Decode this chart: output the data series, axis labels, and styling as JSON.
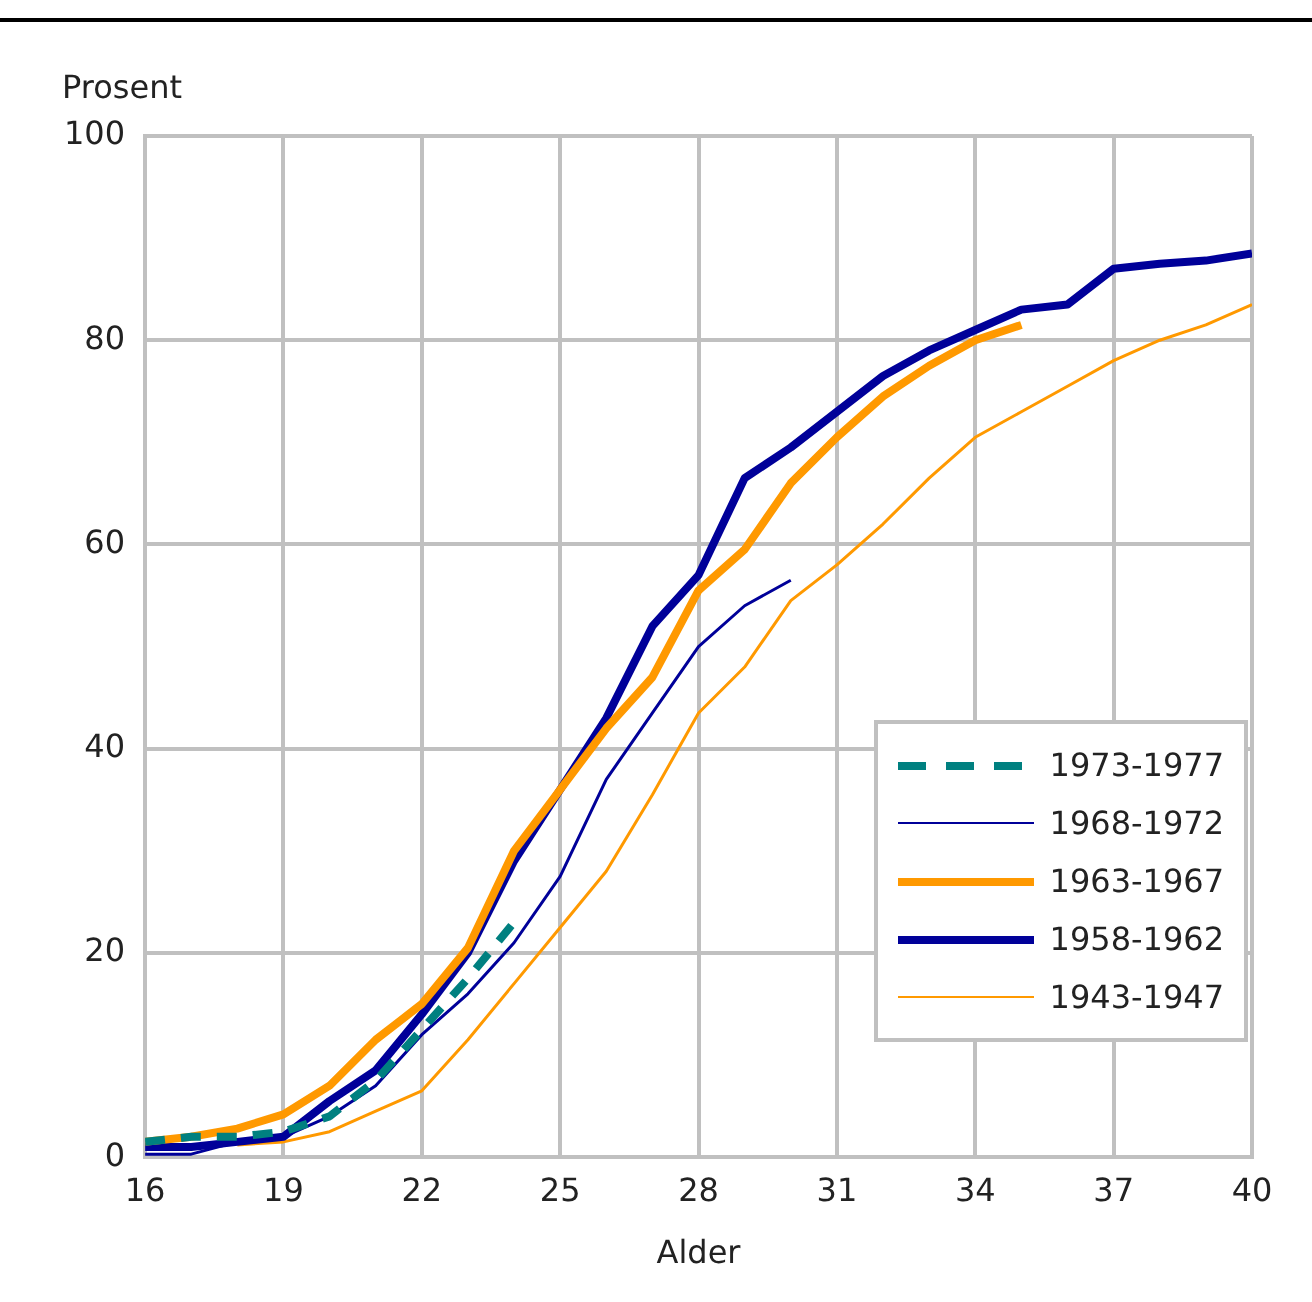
{
  "chart_data": {
    "type": "line",
    "ylabel": "Prosent",
    "xlabel": "Alder",
    "x": [
      16,
      17,
      18,
      19,
      20,
      21,
      22,
      23,
      24,
      25,
      26,
      27,
      28,
      29,
      30,
      31,
      32,
      33,
      34,
      35,
      36,
      37,
      38,
      39,
      40
    ],
    "series": [
      {
        "name": "1973-1977",
        "color": "#008080",
        "line_style": "dashed",
        "values": [
          1.5,
          2,
          2,
          2.5,
          4,
          7.5,
          12.5,
          17.5,
          23,
          null,
          null,
          null,
          null,
          null,
          null,
          null,
          null,
          null,
          null,
          null,
          null,
          null,
          null,
          null,
          null
        ]
      },
      {
        "name": "1968-1972",
        "color": "#000099",
        "values": [
          0.3,
          0.3,
          1.5,
          2,
          4,
          7,
          12,
          16,
          21,
          27.5,
          37,
          43.5,
          50,
          54,
          56.5,
          null,
          null,
          null,
          null,
          null,
          null,
          null,
          null,
          null,
          null
        ]
      },
      {
        "name": "1963-1967",
        "color": "#ff9900",
        "values": [
          1.5,
          2,
          2.8,
          4.2,
          7,
          11.5,
          15,
          20.5,
          30,
          36,
          42,
          47,
          55.5,
          59.5,
          66,
          70.5,
          74.5,
          77.5,
          80,
          81.5,
          null,
          null,
          null,
          null,
          null
        ]
      },
      {
        "name": "1958-1962",
        "color": "#000099",
        "values": [
          1,
          1,
          1.5,
          2,
          5.5,
          8.5,
          14,
          20,
          29,
          36,
          43,
          52,
          57,
          66.5,
          69.5,
          73,
          76.5,
          79,
          81,
          83,
          83.5,
          87,
          87.5,
          87.8,
          88.5
        ]
      },
      {
        "name": "1943-1947",
        "color": "#ff9900",
        "values": [
          null,
          null,
          1.2,
          1.5,
          2.5,
          4.5,
          6.5,
          11.5,
          17,
          22.5,
          28,
          35.5,
          43.5,
          48,
          54.5,
          58,
          62,
          66.5,
          70.5,
          73,
          75.5,
          78,
          80,
          81.5,
          83.5
        ]
      }
    ],
    "xlim": [
      16,
      40
    ],
    "xticks": [
      16,
      19,
      22,
      25,
      28,
      31,
      34,
      37,
      40
    ],
    "ylim": [
      0,
      100
    ],
    "yticks": [
      0,
      20,
      40,
      60,
      80,
      100
    ],
    "grid": true,
    "legend": "bottom right",
    "marker": "none"
  }
}
